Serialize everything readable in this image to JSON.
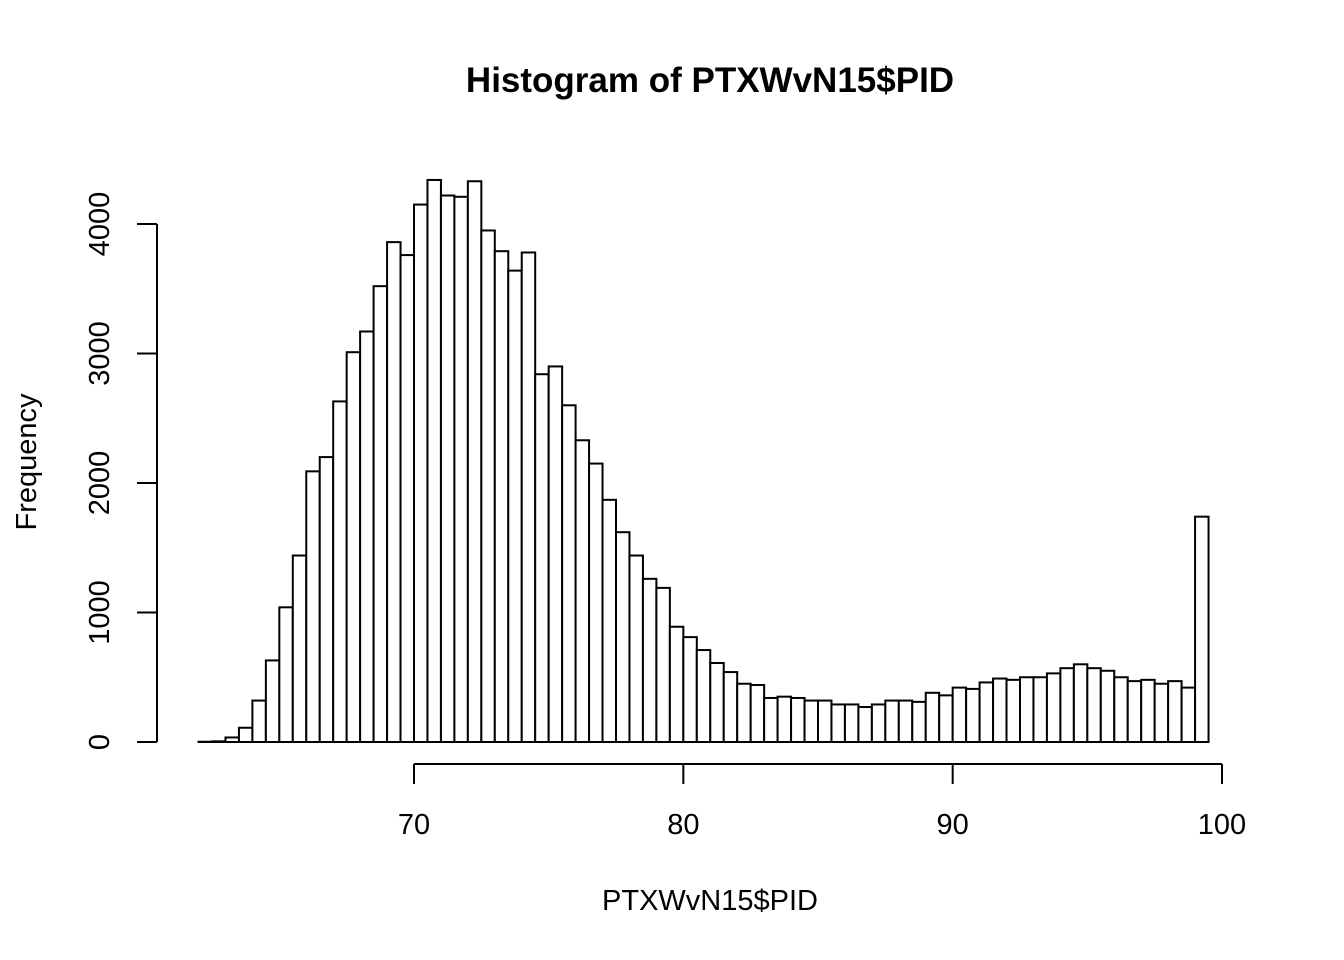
{
  "chart_data": {
    "type": "bar",
    "title": "Histogram of PTXWvN15$PID",
    "xlabel": "PTXWvN15$PID",
    "ylabel": "Frequency",
    "bin_width": 0.5,
    "bin_start": 62,
    "xlim": [
      62,
      100
    ],
    "ylim": [
      0,
      4000
    ],
    "x_ticks": [
      70,
      80,
      90,
      100
    ],
    "y_ticks": [
      0,
      1000,
      2000,
      3000,
      4000
    ],
    "grid": false,
    "counts": [
      2,
      5,
      35,
      110,
      320,
      630,
      1040,
      1440,
      2090,
      2200,
      2630,
      3010,
      3170,
      3520,
      3860,
      3760,
      4150,
      4340,
      4220,
      4210,
      4330,
      3950,
      3790,
      3640,
      3780,
      2840,
      2900,
      2600,
      2330,
      2150,
      1870,
      1620,
      1440,
      1260,
      1190,
      890,
      810,
      710,
      610,
      540,
      450,
      440,
      340,
      350,
      340,
      320,
      320,
      290,
      290,
      270,
      290,
      320,
      320,
      310,
      380,
      360,
      420,
      410,
      460,
      490,
      480,
      500,
      500,
      530,
      570,
      600,
      570,
      550,
      500,
      470,
      480,
      450,
      470,
      420,
      1740
    ]
  }
}
